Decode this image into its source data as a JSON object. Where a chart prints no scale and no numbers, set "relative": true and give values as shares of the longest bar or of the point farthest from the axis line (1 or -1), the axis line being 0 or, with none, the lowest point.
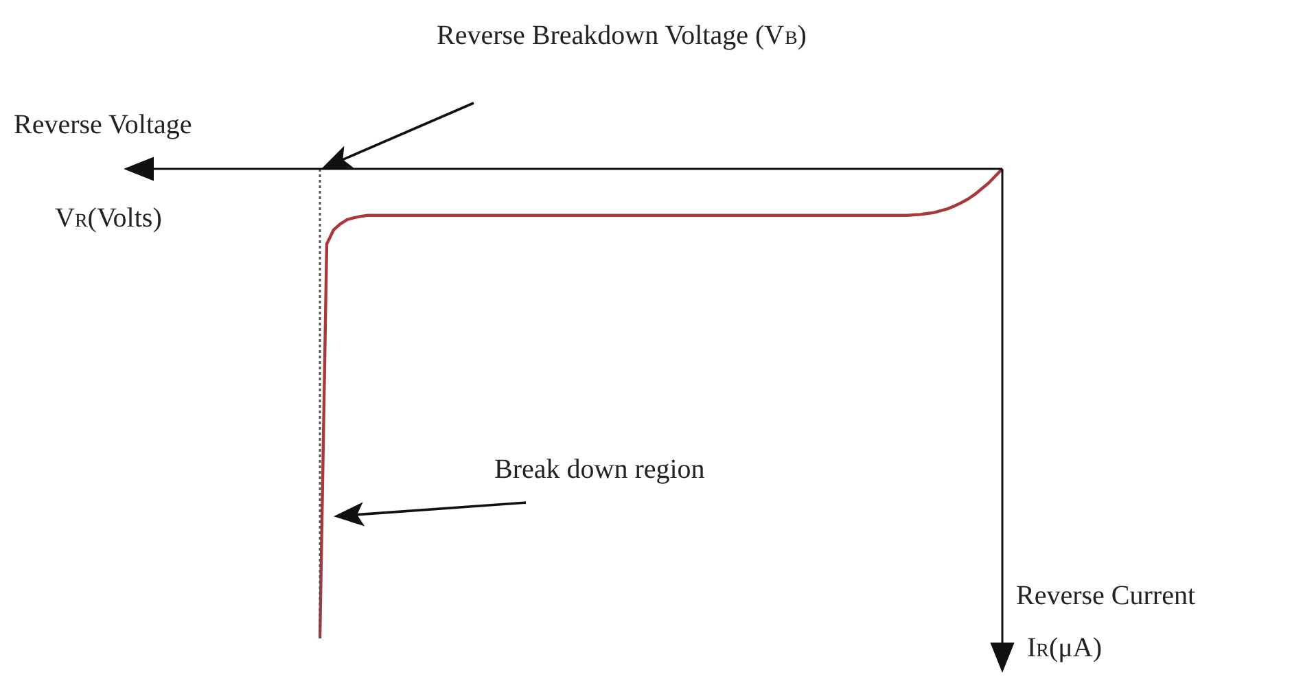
{
  "chart_data": {
    "type": "line",
    "relative": true,
    "xlabel": "Reverse Voltage\nV$_{R}$(Volts)",
    "categories": [
      null,
      null,
      null,
      null,
      null,
      null,
      null,
      null,
      null,
      null,
      null,
      null,
      null,
      null,
      null,
      null,
      null,
      null,
      null,
      null,
      null,
      null,
      null,
      null,
      null,
      null,
      null,
      null,
      null,
      null,
      null,
      null,
      null,
      null,
      null,
      null,
      null,
      null,
      null,
      null,
      null,
      null,
      null,
      null,
      null,
      null,
      null,
      null,
      null,
      null,
      null,
      null,
      null,
      null,
      null,
      null,
      null,
      null,
      null,
      null,
      null,
      null,
      null,
      null,
      null,
      null,
      null,
      null,
      null,
      null,
      null,
      null,
      null,
      null,
      null,
      null,
      null,
      null,
      null,
      null,
      null,
      null,
      null,
      null,
      null,
      null,
      null,
      null,
      null,
      null,
      null,
      null,
      null,
      null,
      null,
      null,
      null,
      null,
      null,
      null,
      null
    ],
    "series": [
      {
        "color": "#a8383c",
        "values": [
          -1,
          -0.16,
          -0.13,
          -0.117,
          -0.108,
          -0.104,
          -0.101,
          -0.099,
          -0.099,
          -0.099,
          -0.099,
          -0.099,
          -0.099,
          -0.099,
          -0.099,
          -0.099,
          -0.099,
          -0.099,
          -0.099,
          -0.099,
          -0.099,
          -0.099,
          -0.099,
          -0.099,
          -0.099,
          -0.099,
          -0.099,
          -0.099,
          -0.099,
          -0.099,
          -0.099,
          -0.099,
          -0.099,
          -0.099,
          -0.099,
          -0.099,
          -0.099,
          -0.099,
          -0.099,
          -0.099,
          -0.099,
          -0.099,
          -0.099,
          -0.099,
          -0.099,
          -0.099,
          -0.099,
          -0.099,
          -0.099,
          -0.099,
          -0.099,
          -0.099,
          -0.099,
          -0.099,
          -0.099,
          -0.099,
          -0.099,
          -0.099,
          -0.099,
          -0.099,
          -0.099,
          -0.099,
          -0.099,
          -0.099,
          -0.099,
          -0.099,
          -0.099,
          -0.099,
          -0.099,
          -0.099,
          -0.099,
          -0.099,
          -0.099,
          -0.099,
          -0.099,
          -0.099,
          -0.099,
          -0.099,
          -0.099,
          -0.099,
          -0.099,
          -0.099,
          -0.099,
          -0.099,
          -0.099,
          -0.099,
          -0.099,
          -0.098,
          -0.097,
          -0.095,
          -0.093,
          -0.089,
          -0.085,
          -0.079,
          -0.072,
          -0.064,
          -0.054,
          -0.042,
          -0.03,
          -0.015,
          0
        ]
      }
    ],
    "annotations": [
      "Reverse Breakdown Voltage (V$_{B}$)",
      "Break down region",
      "Reverse Current",
      "I$_{R}$(μA)"
    ]
  }
}
